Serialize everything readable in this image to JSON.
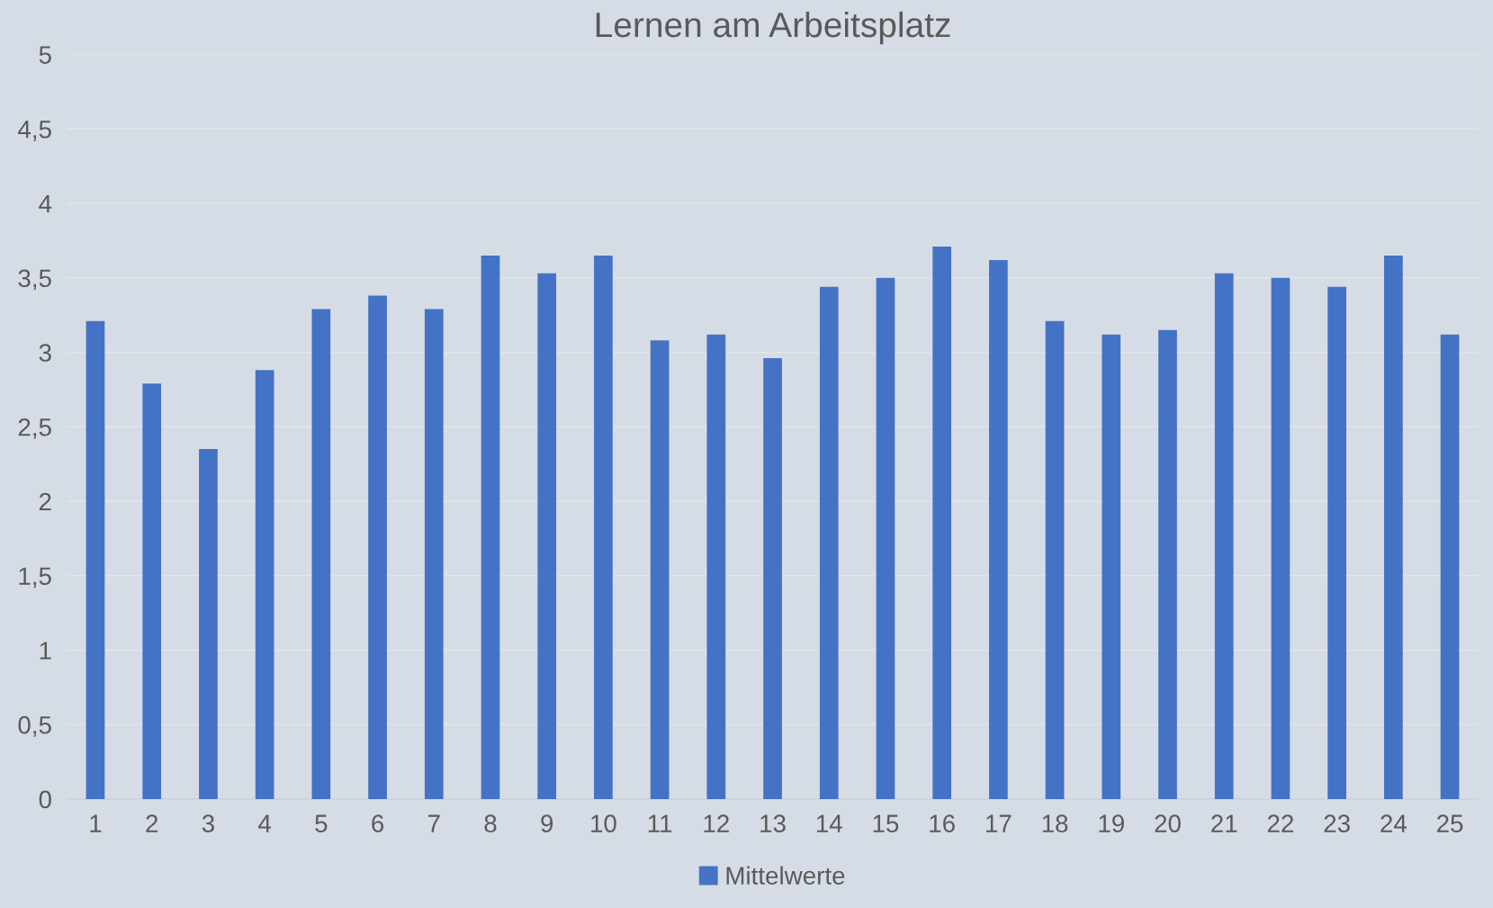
{
  "chart_data": {
    "type": "bar",
    "title": "Lernen am Arbeitsplatz",
    "categories": [
      "1",
      "2",
      "3",
      "4",
      "5",
      "6",
      "7",
      "8",
      "9",
      "10",
      "11",
      "12",
      "13",
      "14",
      "15",
      "16",
      "17",
      "18",
      "19",
      "20",
      "21",
      "22",
      "23",
      "24",
      "25"
    ],
    "series": [
      {
        "name": "Mittelwerte",
        "color": "#4472c4",
        "values": [
          3.21,
          2.79,
          2.35,
          2.88,
          3.29,
          3.38,
          3.29,
          3.65,
          3.53,
          3.65,
          3.08,
          3.12,
          2.96,
          3.44,
          3.5,
          3.71,
          3.62,
          3.21,
          3.12,
          3.15,
          3.53,
          3.5,
          3.44,
          3.65,
          3.12
        ]
      }
    ],
    "ylim": [
      0,
      5
    ],
    "yticks": [
      0,
      {
        "value": 0.5,
        "label": "0,5"
      },
      1,
      {
        "value": 1.5,
        "label": "1,5"
      },
      2,
      {
        "value": 2.5,
        "label": "2,5"
      },
      3,
      {
        "value": 3.5,
        "label": "3,5"
      },
      4,
      {
        "value": 4.5,
        "label": "4,5"
      },
      5
    ],
    "grid": "y",
    "legend": "bottom"
  }
}
